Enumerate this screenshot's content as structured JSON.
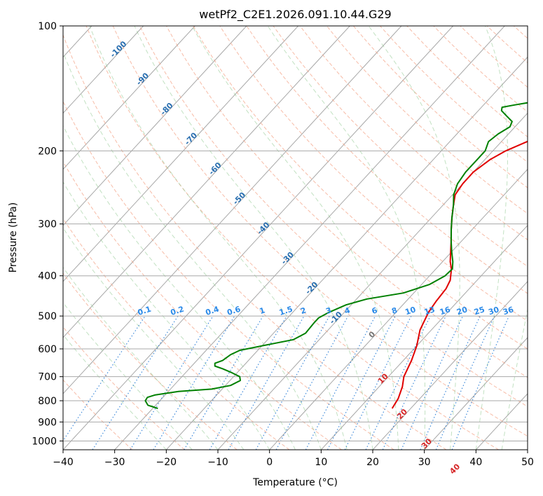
{
  "chart_data": {
    "type": "line",
    "title": "wetPf2_C2E1.2026.091.10.44.G29",
    "xlabel": "Temperature (°C)",
    "ylabel": "Pressure (hPa)",
    "xlim": [
      -40,
      50
    ],
    "ylim": [
      1050,
      100
    ],
    "y_scale": "log",
    "grid": true,
    "x_ticks": [
      -40,
      -30,
      -20,
      -10,
      0,
      10,
      20,
      30,
      40,
      50
    ],
    "y_ticks": [
      100,
      200,
      300,
      400,
      500,
      600,
      700,
      800,
      900,
      1000
    ],
    "isotherm_labels": [
      -100,
      -90,
      -80,
      -70,
      -60,
      -50,
      -40,
      -30,
      -20,
      -10,
      0,
      10,
      20,
      30,
      40
    ],
    "mixing_ratio_labels": [
      "0.1",
      "0.2",
      "0.4",
      "0.6",
      "1",
      "1.5",
      "2",
      "3",
      "4",
      "6",
      "8",
      "10",
      "13",
      "16",
      "20",
      "25",
      "30",
      "36"
    ],
    "series": [
      {
        "color": "#e00000",
        "points": [
          [
            16.4,
            835
          ],
          [
            15.8,
            790
          ],
          [
            14.5,
            740
          ],
          [
            13.0,
            700
          ],
          [
            11.6,
            640
          ],
          [
            10.0,
            590
          ],
          [
            7.8,
            540
          ],
          [
            6.3,
            490
          ],
          [
            5.8,
            460
          ],
          [
            5.5,
            430
          ],
          [
            4.8,
            410
          ],
          [
            3.0,
            385
          ],
          [
            1.5,
            370
          ],
          [
            -0.2,
            350
          ],
          [
            -2.0,
            330
          ],
          [
            -4.0,
            310
          ],
          [
            -6.0,
            290
          ],
          [
            -8.0,
            270
          ],
          [
            -9.5,
            255
          ],
          [
            -10.0,
            240
          ],
          [
            -10.0,
            225
          ],
          [
            -9.0,
            210
          ],
          [
            -7.5,
            200
          ],
          [
            -5.0,
            190
          ],
          [
            -2.0,
            180
          ],
          [
            2.0,
            172
          ],
          [
            6.0,
            166
          ],
          [
            9.5,
            160
          ],
          [
            10.4,
            152
          ],
          [
            10.4,
            140
          ],
          [
            11.0,
            128
          ],
          [
            12.6,
            120
          ],
          [
            14.5,
            112
          ],
          [
            16.5,
            106
          ],
          [
            18.1,
            100
          ]
        ]
      },
      {
        "color": "#008000",
        "points": [
          [
            -29.0,
            835
          ],
          [
            -31.5,
            820
          ],
          [
            -32.8,
            800
          ],
          [
            -33.0,
            785
          ],
          [
            -32.0,
            775
          ],
          [
            -28.0,
            760
          ],
          [
            -22.0,
            750
          ],
          [
            -19.0,
            735
          ],
          [
            -18.0,
            715
          ],
          [
            -18.8,
            700
          ],
          [
            -21.0,
            685
          ],
          [
            -23.5,
            670
          ],
          [
            -25.5,
            660
          ],
          [
            -26.0,
            650
          ],
          [
            -25.0,
            640
          ],
          [
            -24.5,
            620
          ],
          [
            -23.5,
            605
          ],
          [
            -20.0,
            590
          ],
          [
            -15.0,
            570
          ],
          [
            -13.8,
            550
          ],
          [
            -14.0,
            520
          ],
          [
            -14.0,
            505
          ],
          [
            -13.0,
            490
          ],
          [
            -11.0,
            470
          ],
          [
            -8.0,
            455
          ],
          [
            -2.0,
            440
          ],
          [
            1.5,
            420
          ],
          [
            3.0,
            400
          ],
          [
            3.2,
            385
          ],
          [
            2.0,
            370
          ],
          [
            0.0,
            350
          ],
          [
            -2.0,
            330
          ],
          [
            -4.0,
            310
          ],
          [
            -6.0,
            290
          ],
          [
            -8.0,
            270
          ],
          [
            -9.8,
            255
          ],
          [
            -11.0,
            240
          ],
          [
            -11.5,
            225
          ],
          [
            -11.5,
            210
          ],
          [
            -11.5,
            200
          ],
          [
            -12.5,
            190
          ],
          [
            -12.0,
            182
          ],
          [
            -11.0,
            175
          ],
          [
            -11.5,
            170
          ],
          [
            -13.5,
            165
          ],
          [
            -15.5,
            160
          ],
          [
            -16.0,
            157
          ],
          [
            -14.0,
            155
          ],
          [
            -10.5,
            152
          ],
          [
            -8.0,
            148
          ],
          [
            -7.5,
            140
          ],
          [
            -8.0,
            130
          ],
          [
            -8.0,
            125
          ],
          [
            -7.0,
            118
          ],
          [
            -5.5,
            112
          ],
          [
            -3.5,
            106
          ],
          [
            -2.0,
            100
          ]
        ]
      }
    ]
  }
}
